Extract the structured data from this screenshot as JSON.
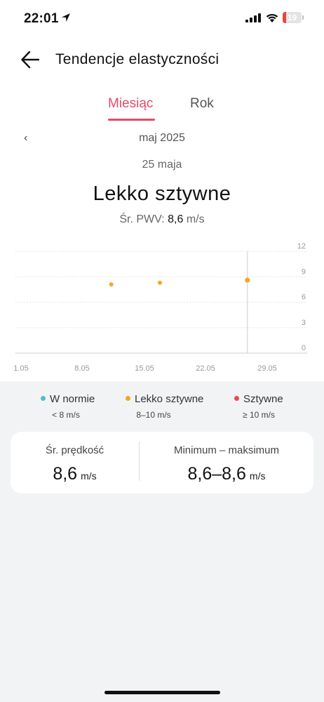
{
  "status_bar": {
    "time": "22:01",
    "battery": "19",
    "battery_level": 0.19
  },
  "header": {
    "title": "Tendencje elastyczności"
  },
  "tabs": [
    {
      "label": "Miesiąc",
      "active": true
    },
    {
      "label": "Rok",
      "active": false
    }
  ],
  "period": {
    "month": "maj 2025",
    "day": "25 maja"
  },
  "summary": {
    "status": "Lekko sztywne",
    "avg_label": "Śr. PWV:",
    "avg_value": "8,6",
    "avg_unit": "m/s"
  },
  "chart_data": {
    "type": "scatter",
    "x_ticks": [
      "1.05",
      "8.05",
      "15.05",
      "22.05",
      "29.05"
    ],
    "y_ticks": [
      "12",
      "9",
      "6",
      "3",
      "0"
    ],
    "ylim": [
      0,
      12
    ],
    "x_domain_days": [
      1,
      31
    ],
    "selected_day": 25,
    "points": [
      {
        "day": 11,
        "value": 8.1,
        "color": "#f5a623"
      },
      {
        "day": 16,
        "value": 8.3,
        "color": "#f5a623"
      },
      {
        "day": 25,
        "value": 8.6,
        "color": "#f5a623"
      }
    ]
  },
  "legend": [
    {
      "label": "W normie",
      "range": "< 8 m/s",
      "color": "#4dbfc9"
    },
    {
      "label": "Lekko sztywne",
      "range": "8–10 m/s",
      "color": "#f5a623"
    },
    {
      "label": "Sztywne",
      "range": "≥ 10 m/s",
      "color": "#e84a4a"
    }
  ],
  "stats": {
    "avg_label": "Śr. prędkość",
    "avg_value": "8,6",
    "avg_unit": "m/s",
    "range_label": "Minimum – maksimum",
    "range_value": "8,6–8,6",
    "range_unit": "m/s"
  },
  "colors": {
    "accent": "#e74a67",
    "card_bg": "#ffffff",
    "page_bg": "#f2f3f5"
  }
}
